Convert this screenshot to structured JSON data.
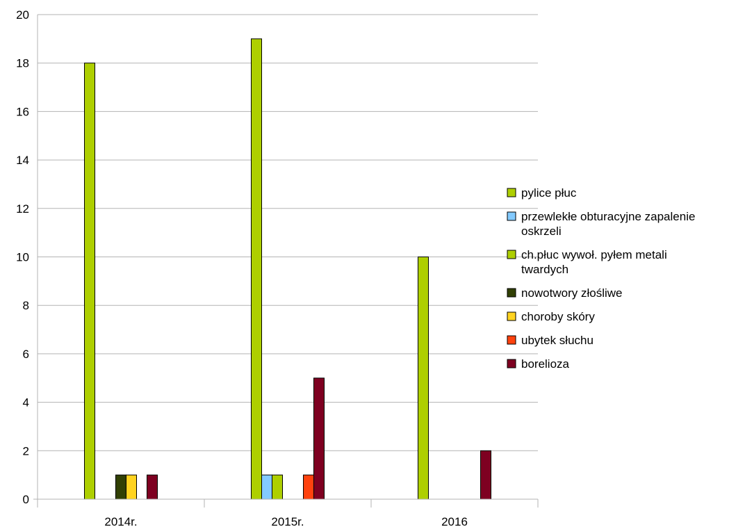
{
  "chart_data": {
    "type": "bar",
    "title": "",
    "xlabel": "",
    "ylabel": "",
    "categories": [
      "2014r.",
      "2015r.",
      "2016"
    ],
    "ylim": [
      0,
      20
    ],
    "y_ticks": [
      "0",
      "2",
      "4",
      "6",
      "8",
      "10",
      "12",
      "14",
      "16",
      "18",
      "20"
    ],
    "grid": "horizontal",
    "legend_position": "right",
    "series": [
      {
        "name": "pylice płuc",
        "legend_lines": [
          "pylice płuc"
        ],
        "color": "#aecf00",
        "values": [
          18,
          19,
          10
        ]
      },
      {
        "name": "przewlekłe obturacyjne zapalenie oskrzeli",
        "legend_lines": [
          "przewlekłe obturacyjne zapalenie",
          "oskrzeli"
        ],
        "color": "#83caff",
        "values": [
          0,
          1,
          0
        ]
      },
      {
        "name": "ch.płuc wywoł. pyłem metali twardych",
        "legend_lines": [
          "ch.płuc wywoł. pyłem metali",
          "twardych"
        ],
        "color": "#aecf00",
        "values": [
          0,
          1,
          0
        ]
      },
      {
        "name": "nowotwory złośliwe",
        "legend_lines": [
          "nowotwory złośliwe"
        ],
        "color": "#314004",
        "values": [
          1,
          0,
          0
        ]
      },
      {
        "name": "choroby skóry",
        "legend_lines": [
          "choroby skóry"
        ],
        "color": "#ffd320",
        "values": [
          1,
          0,
          0
        ]
      },
      {
        "name": "ubytek słuchu",
        "legend_lines": [
          "ubytek słuchu"
        ],
        "color": "#ff420e",
        "values": [
          0,
          1,
          0
        ]
      },
      {
        "name": "borelioza",
        "legend_lines": [
          "borelioza"
        ],
        "color": "#7e0021",
        "values": [
          1,
          5,
          2
        ]
      }
    ]
  }
}
